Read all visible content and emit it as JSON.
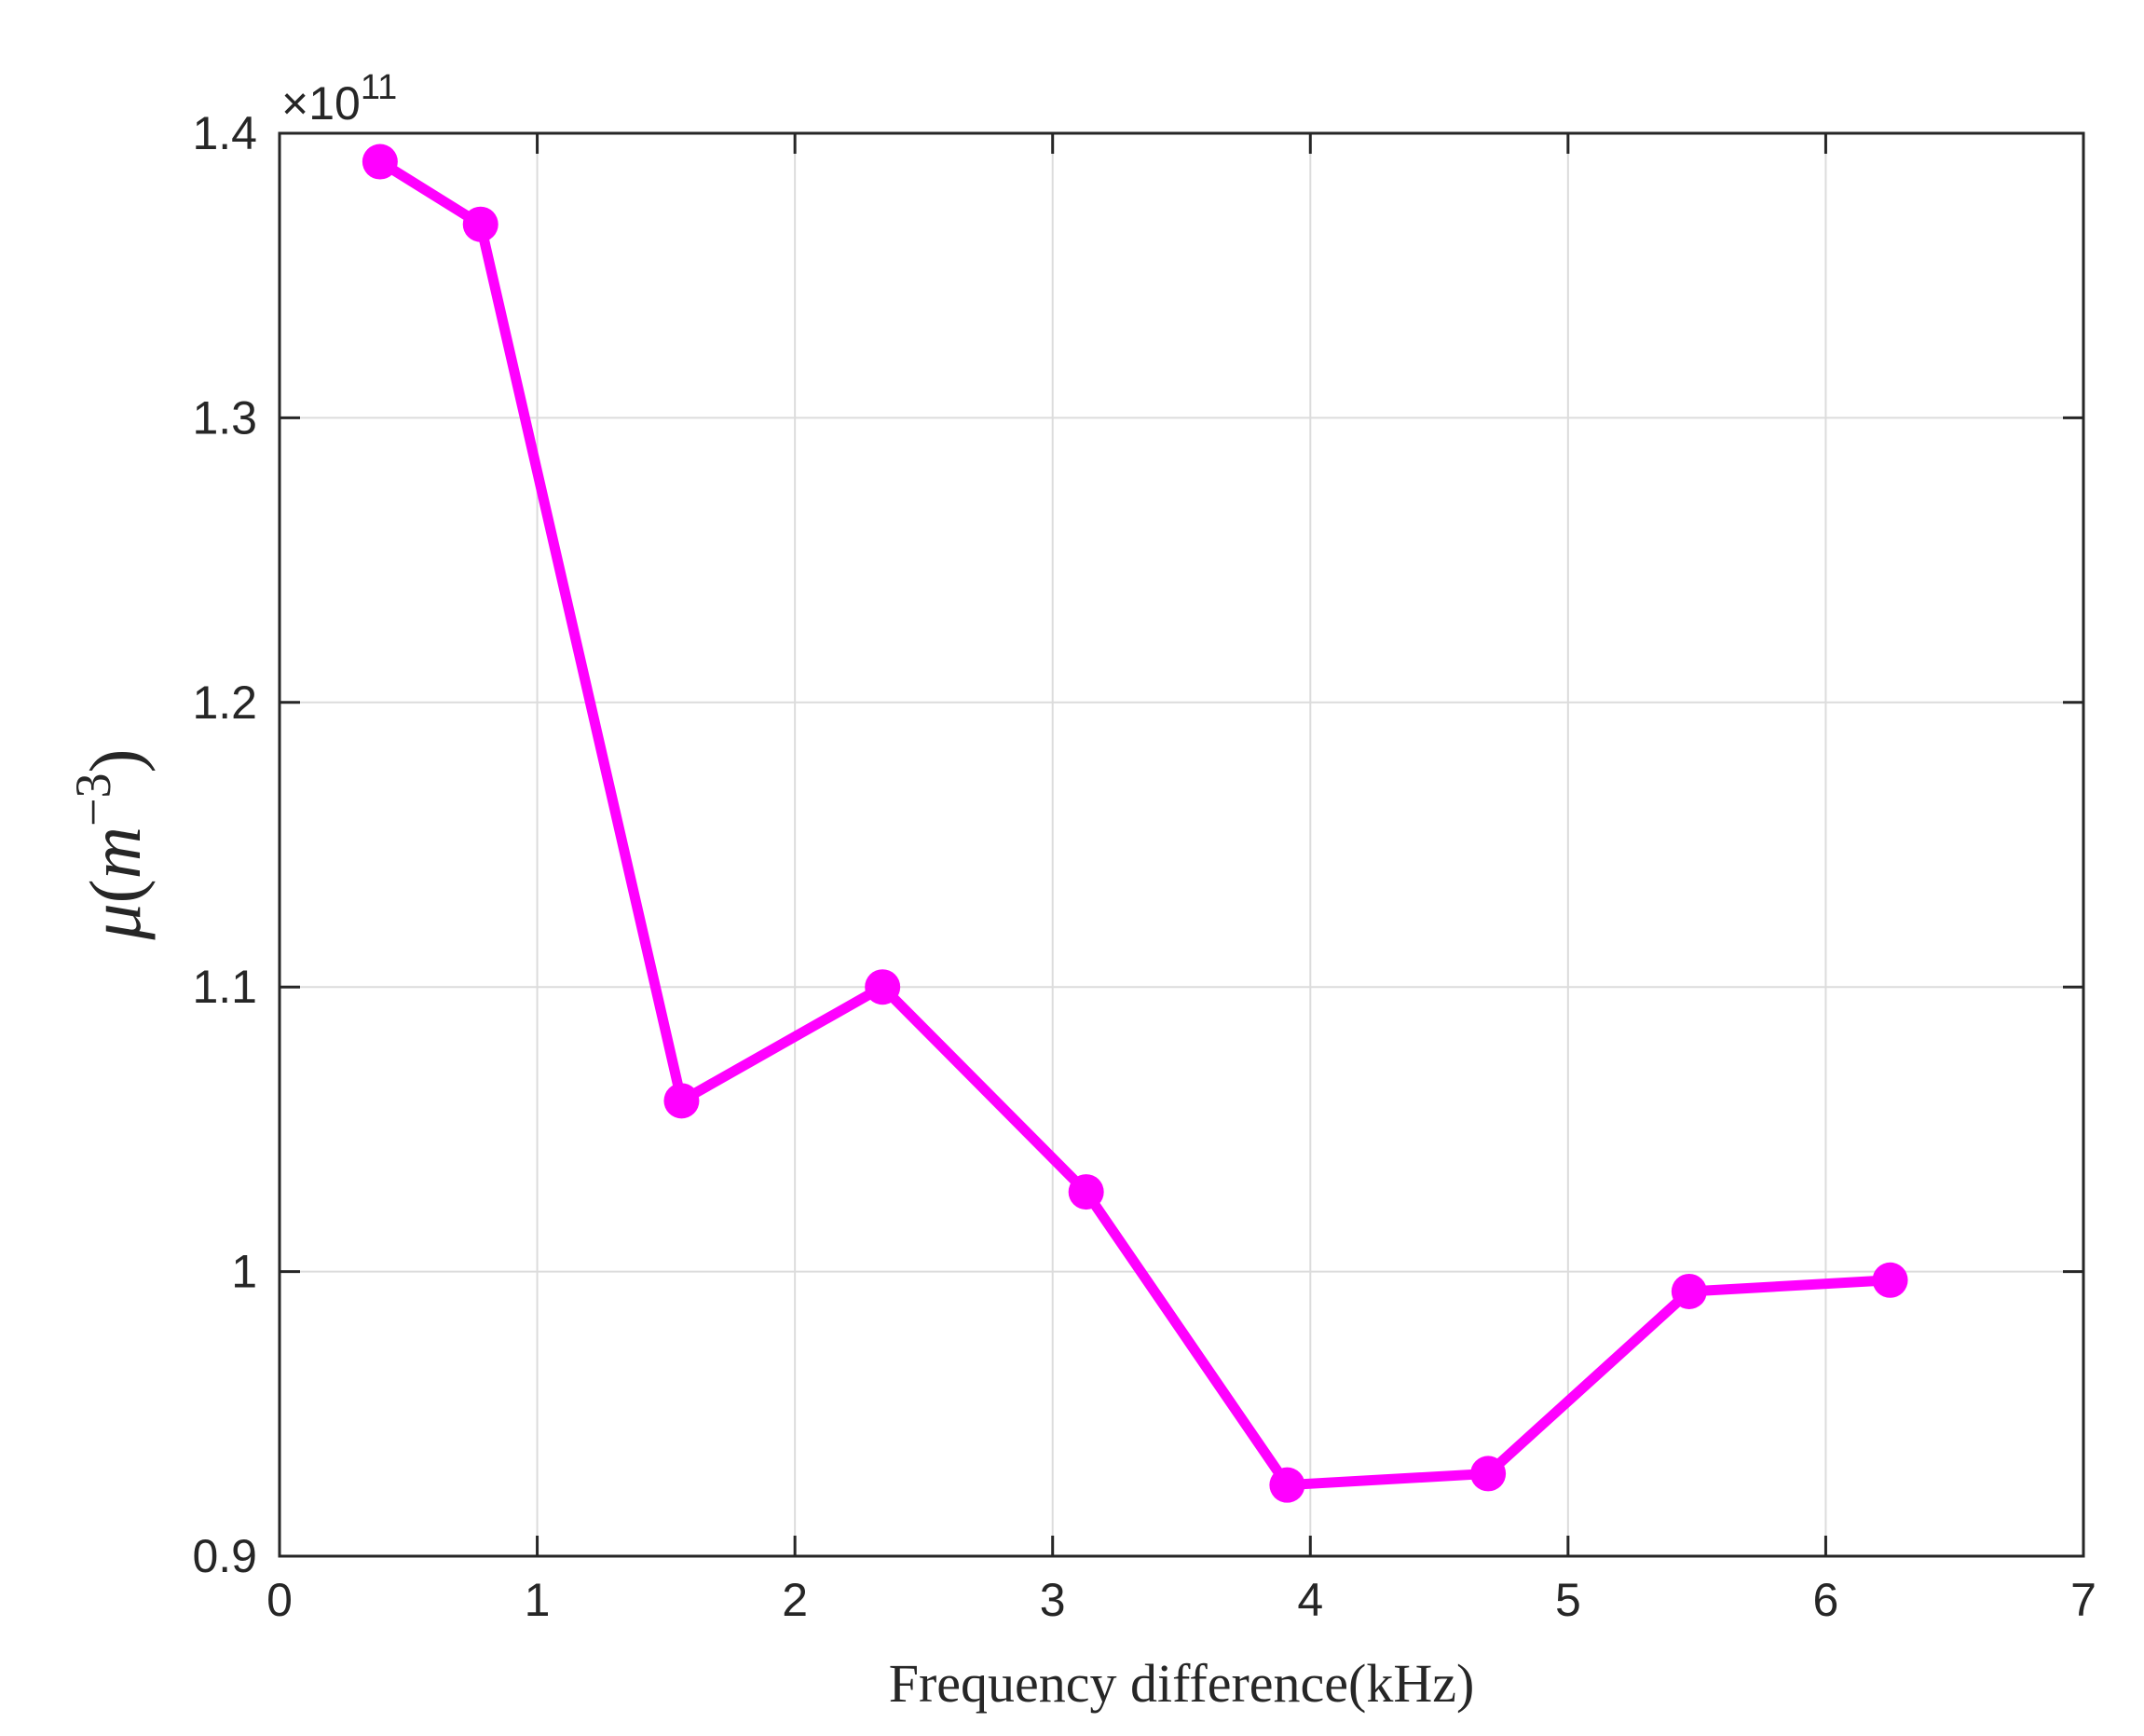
{
  "chart_data": {
    "type": "line",
    "title": "",
    "xlabel": "Frequency difference(kHz)",
    "ylabel": {
      "symbol": "μ",
      "open": "(",
      "unit": "m",
      "exponent": "−3",
      "close": ")"
    },
    "exponent_label": {
      "prefix": "×10",
      "power": "11"
    },
    "xlim": [
      0,
      7
    ],
    "ylim": [
      0.9,
      1.4
    ],
    "xticks": [
      0,
      1,
      2,
      3,
      4,
      5,
      6,
      7
    ],
    "xtick_labels": [
      "0",
      "1",
      "2",
      "3",
      "4",
      "5",
      "6",
      "7"
    ],
    "yticks": [
      0.9,
      1.0,
      1.1,
      1.2,
      1.3,
      1.4
    ],
    "ytick_labels": [
      "0.9",
      "1",
      "1.1",
      "1.2",
      "1.3",
      "1.4"
    ],
    "grid": true,
    "series": [
      {
        "color": "#ff00ff",
        "marker": "circle",
        "x": [
          0.39,
          0.78,
          1.56,
          2.34,
          3.13,
          3.91,
          4.69,
          5.47,
          6.25
        ],
        "y": [
          1.39,
          1.368,
          1.06,
          1.1,
          1.028,
          0.925,
          0.929,
          0.993,
          0.997
        ]
      }
    ]
  }
}
